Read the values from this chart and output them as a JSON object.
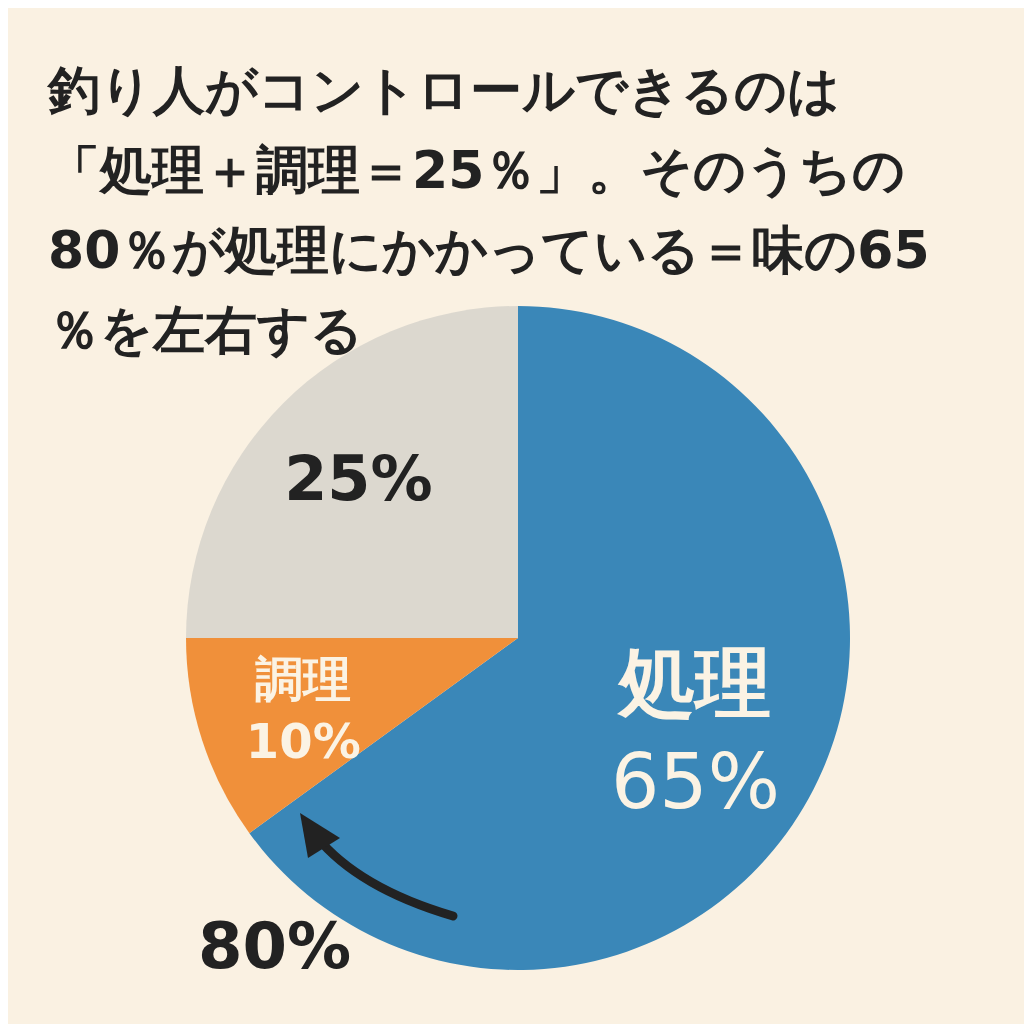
{
  "chart_data": {
    "type": "pie",
    "title": "釣り人がコントロールできるのは「処理＋調理＝25％」。そのうちの80％が処理にかかっている＝味の65％を左右する",
    "categories": [
      "処理",
      "調理",
      null
    ],
    "values": [
      65,
      10,
      25
    ],
    "colors": [
      "#3a87b8",
      "#f0903a",
      "#dcd8cf"
    ],
    "value_labels": [
      "65%",
      "10%",
      "25%"
    ],
    "annotations": [
      "80%"
    ]
  }
}
